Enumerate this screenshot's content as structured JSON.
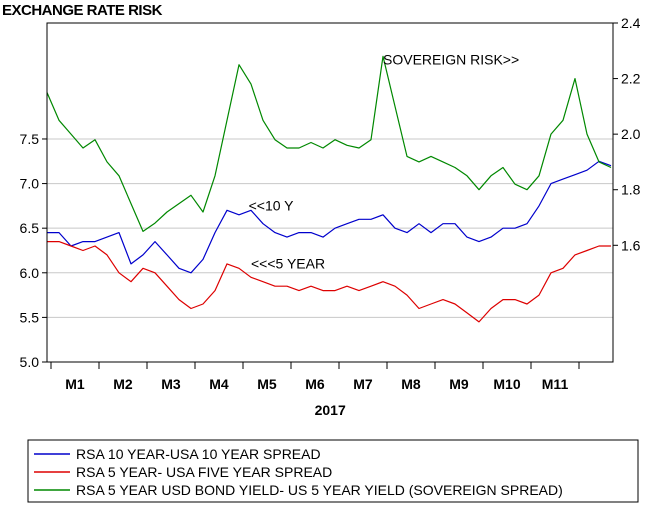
{
  "chart_data": {
    "type": "line",
    "title": "EXCHANGE RATE RISK",
    "xlabel": "2017",
    "x_ticks": [
      "M1",
      "M2",
      "M3",
      "M4",
      "M5",
      "M6",
      "M7",
      "M8",
      "M9",
      "M10",
      "M11"
    ],
    "left_axis": {
      "ticks": [
        "5.0",
        "5.5",
        "6.0",
        "6.5",
        "7.0",
        "7.5"
      ],
      "ylim": [
        5.0,
        8.8
      ]
    },
    "right_axis": {
      "ticks": [
        "1.6",
        "1.8",
        "2.0",
        "2.2",
        "2.4"
      ],
      "ylim": [
        1.18,
        2.4
      ]
    },
    "grid": true,
    "legend_position": "bottom",
    "annotations": [
      {
        "text": "SOVEREIGN RISK>>",
        "x": 7.0,
        "axis": "right",
        "y": 2.25
      },
      {
        "text": "<<10 Y",
        "x": 4.2,
        "axis": "left",
        "y": 6.7
      },
      {
        "text": "<<<5 YEAR",
        "x": 4.25,
        "axis": "left",
        "y": 6.05
      }
    ],
    "series": [
      {
        "name": "RSA 10 YEAR-USA 10 YEAR SPREAD",
        "color": "#0000cc",
        "axis": "left",
        "x": [
          0,
          0.25,
          0.5,
          0.75,
          1.0,
          1.25,
          1.5,
          1.75,
          2.0,
          2.25,
          2.5,
          2.75,
          3.0,
          3.25,
          3.5,
          3.75,
          4.0,
          4.25,
          4.5,
          4.75,
          5.0,
          5.25,
          5.5,
          5.75,
          6.0,
          6.25,
          6.5,
          6.75,
          7.0,
          7.25,
          7.5,
          7.75,
          8.0,
          8.25,
          8.5,
          8.75,
          9.0,
          9.25,
          9.5,
          9.75,
          10.0,
          10.25,
          10.5,
          10.75,
          11.0,
          11.25,
          11.5,
          11.75
        ],
        "values": [
          6.45,
          6.45,
          6.3,
          6.35,
          6.35,
          6.4,
          6.45,
          6.1,
          6.2,
          6.35,
          6.2,
          6.05,
          6.0,
          6.15,
          6.45,
          6.7,
          6.65,
          6.7,
          6.55,
          6.45,
          6.4,
          6.45,
          6.45,
          6.4,
          6.5,
          6.55,
          6.6,
          6.6,
          6.65,
          6.5,
          6.45,
          6.55,
          6.45,
          6.55,
          6.55,
          6.4,
          6.35,
          6.4,
          6.5,
          6.5,
          6.55,
          6.75,
          7.0,
          7.05,
          7.1,
          7.15,
          7.25,
          7.2
        ]
      },
      {
        "name": "RSA 5 YEAR- USA FIVE YEAR  SPREAD",
        "color": "#dd0000",
        "axis": "left",
        "x": [
          0,
          0.25,
          0.5,
          0.75,
          1.0,
          1.25,
          1.5,
          1.75,
          2.0,
          2.25,
          2.5,
          2.75,
          3.0,
          3.25,
          3.5,
          3.75,
          4.0,
          4.25,
          4.5,
          4.75,
          5.0,
          5.25,
          5.5,
          5.75,
          6.0,
          6.25,
          6.5,
          6.75,
          7.0,
          7.25,
          7.5,
          7.75,
          8.0,
          8.25,
          8.5,
          8.75,
          9.0,
          9.25,
          9.5,
          9.75,
          10.0,
          10.25,
          10.5,
          10.75,
          11.0,
          11.25,
          11.5,
          11.75
        ],
        "values": [
          6.35,
          6.35,
          6.3,
          6.25,
          6.3,
          6.2,
          6.0,
          5.9,
          6.05,
          6.0,
          5.85,
          5.7,
          5.6,
          5.65,
          5.8,
          6.1,
          6.05,
          5.95,
          5.9,
          5.85,
          5.85,
          5.8,
          5.85,
          5.8,
          5.8,
          5.85,
          5.8,
          5.85,
          5.9,
          5.85,
          5.75,
          5.6,
          5.65,
          5.7,
          5.65,
          5.55,
          5.45,
          5.6,
          5.7,
          5.7,
          5.65,
          5.75,
          6.0,
          6.05,
          6.2,
          6.25,
          6.3,
          6.3
        ]
      },
      {
        "name": "RSA 5 YEAR USD BOND YIELD- US 5 YEAR YIELD (SOVEREIGN SPREAD)",
        "color": "#008800",
        "axis": "right",
        "x": [
          0,
          0.25,
          0.5,
          0.75,
          1.0,
          1.25,
          1.5,
          1.75,
          2.0,
          2.25,
          2.5,
          2.75,
          3.0,
          3.25,
          3.5,
          3.75,
          4.0,
          4.25,
          4.5,
          4.75,
          5.0,
          5.25,
          5.5,
          5.75,
          6.0,
          6.25,
          6.5,
          6.75,
          7.0,
          7.25,
          7.5,
          7.75,
          8.0,
          8.25,
          8.5,
          8.75,
          9.0,
          9.25,
          9.5,
          9.75,
          10.0,
          10.25,
          10.5,
          10.75,
          11.0,
          11.25,
          11.5,
          11.75
        ],
        "values": [
          2.15,
          2.05,
          2.0,
          1.95,
          1.98,
          1.9,
          1.85,
          1.75,
          1.65,
          1.68,
          1.72,
          1.75,
          1.78,
          1.72,
          1.85,
          2.05,
          2.25,
          2.18,
          2.05,
          1.98,
          1.95,
          1.95,
          1.97,
          1.95,
          1.98,
          1.96,
          1.95,
          1.98,
          2.28,
          2.1,
          1.92,
          1.9,
          1.92,
          1.9,
          1.88,
          1.85,
          1.8,
          1.85,
          1.88,
          1.82,
          1.8,
          1.85,
          2.0,
          2.05,
          2.2,
          2.0,
          1.9,
          1.88
        ]
      }
    ]
  }
}
